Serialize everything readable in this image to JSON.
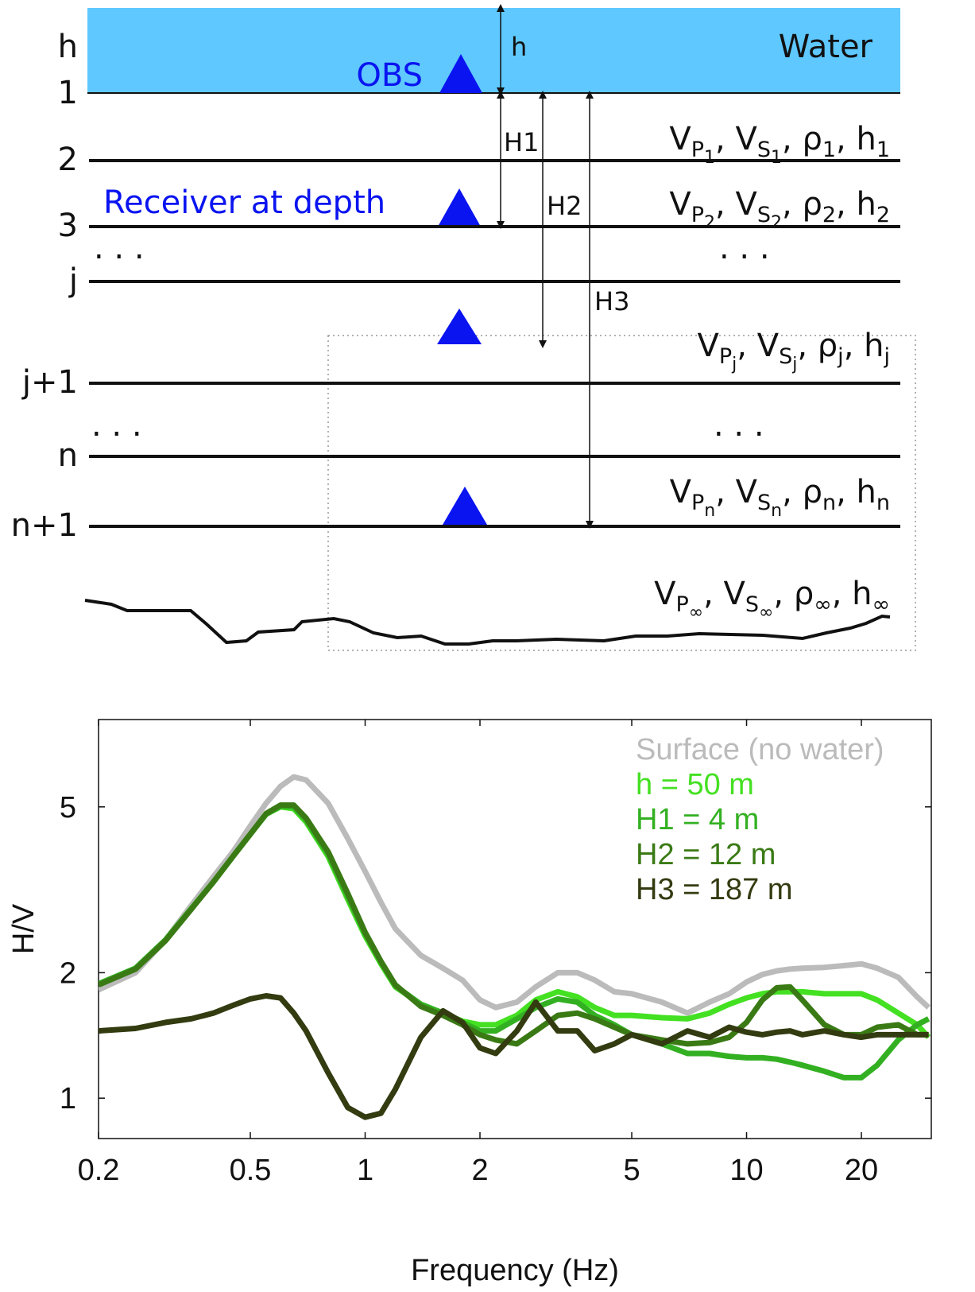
{
  "diagram": {
    "water_label": "Water",
    "obs_label": "OBS",
    "receiver_label": "Receiver at depth",
    "interface_labels": [
      "h",
      "1",
      "2",
      "3",
      "j",
      "j+1",
      "n",
      "n+1"
    ],
    "ellipsis": ". . .",
    "distance_labels": [
      "h",
      "H1",
      "H2",
      "H3"
    ],
    "separator": ", ",
    "layers": [
      [
        {
          "base": "V",
          "sub": "P",
          "subsub": "1"
        },
        {
          "base": "V",
          "sub": "S",
          "subsub": "1"
        },
        {
          "base": "ρ",
          "sub": "1"
        },
        {
          "base": "h",
          "sub": "1"
        }
      ],
      [
        {
          "base": "V",
          "sub": "P",
          "subsub": "2"
        },
        {
          "base": "V",
          "sub": "S",
          "subsub": "2"
        },
        {
          "base": "ρ",
          "sub": "2"
        },
        {
          "base": "h",
          "sub": "2"
        }
      ],
      [
        {
          "base": "V",
          "sub": "P",
          "subsub": "j"
        },
        {
          "base": "V",
          "sub": "S",
          "subsub": "j"
        },
        {
          "base": "ρ",
          "sub": "j"
        },
        {
          "base": "h",
          "sub": "j"
        }
      ],
      [
        {
          "base": "V",
          "sub": "P",
          "subsub": "n"
        },
        {
          "base": "V",
          "sub": "S",
          "subsub": "n"
        },
        {
          "base": "ρ",
          "sub": "n"
        },
        {
          "base": "h",
          "sub": "n"
        }
      ],
      [
        {
          "base": "V",
          "sub": "P",
          "subsub": "∞"
        },
        {
          "base": "V",
          "sub": "S",
          "subsub": "∞"
        },
        {
          "base": "ρ",
          "sub": "∞"
        },
        {
          "base": "h",
          "sub": "∞"
        }
      ]
    ]
  },
  "chart_data": {
    "type": "line",
    "xlabel": "Frequency (Hz)",
    "ylabel": "H/V",
    "xscale": "log",
    "yscale": "log",
    "xlim": [
      0.2,
      30.5
    ],
    "ylim": [
      0.8,
      8.1
    ],
    "xticks": [
      0.2,
      0.5,
      1,
      2,
      5,
      10,
      20
    ],
    "yticks": [
      1,
      2,
      5
    ],
    "x": [
      0.2,
      0.25,
      0.3,
      0.35,
      0.4,
      0.45,
      0.5,
      0.55,
      0.6,
      0.65,
      0.7,
      0.8,
      0.9,
      1,
      1.1,
      1.2,
      1.4,
      1.6,
      1.8,
      2,
      2.2,
      2.5,
      2.8,
      3.2,
      3.6,
      4,
      4.5,
      5,
      6,
      7,
      8,
      9,
      10,
      11,
      12,
      13,
      14,
      16,
      18,
      20,
      22,
      25,
      28,
      30
    ],
    "series": [
      {
        "name": "Surface (no water)",
        "color": "#bbbbbb",
        "values": [
          1.82,
          2.0,
          2.4,
          2.9,
          3.4,
          3.9,
          4.5,
          5.1,
          5.6,
          5.9,
          5.8,
          5.1,
          4.2,
          3.5,
          2.95,
          2.55,
          2.2,
          2.05,
          1.92,
          1.72,
          1.65,
          1.7,
          1.85,
          2.0,
          2.0,
          1.92,
          1.8,
          1.78,
          1.7,
          1.6,
          1.7,
          1.78,
          1.9,
          1.98,
          2.02,
          2.04,
          2.05,
          2.06,
          2.08,
          2.1,
          2.05,
          1.95,
          1.75,
          1.65
        ]
      },
      {
        "name": "h = 50 m",
        "color": "#44e022",
        "values": [
          1.88,
          2.05,
          2.4,
          2.85,
          3.3,
          3.8,
          4.3,
          4.8,
          5.0,
          4.95,
          4.6,
          3.8,
          3.0,
          2.45,
          2.1,
          1.85,
          1.68,
          1.6,
          1.53,
          1.5,
          1.5,
          1.58,
          1.72,
          1.8,
          1.75,
          1.65,
          1.58,
          1.58,
          1.56,
          1.55,
          1.6,
          1.68,
          1.74,
          1.78,
          1.8,
          1.8,
          1.8,
          1.78,
          1.78,
          1.78,
          1.72,
          1.6,
          1.5,
          1.4
        ]
      },
      {
        "name": "H1 = 4 m",
        "color": "#33b022",
        "values": [
          1.88,
          2.05,
          2.4,
          2.85,
          3.3,
          3.8,
          4.3,
          4.8,
          5.02,
          5.0,
          4.65,
          3.85,
          3.05,
          2.48,
          2.12,
          1.86,
          1.68,
          1.6,
          1.52,
          1.45,
          1.45,
          1.55,
          1.65,
          1.73,
          1.7,
          1.58,
          1.5,
          1.42,
          1.35,
          1.28,
          1.28,
          1.26,
          1.25,
          1.25,
          1.24,
          1.22,
          1.2,
          1.16,
          1.12,
          1.12,
          1.2,
          1.38,
          1.5,
          1.55
        ]
      },
      {
        "name": "H2 = 12 m",
        "color": "#3a7a15",
        "values": [
          1.87,
          2.04,
          2.39,
          2.84,
          3.3,
          3.8,
          4.3,
          4.82,
          5.05,
          5.05,
          4.7,
          3.9,
          3.1,
          2.5,
          2.13,
          1.87,
          1.66,
          1.58,
          1.5,
          1.42,
          1.38,
          1.35,
          1.45,
          1.58,
          1.6,
          1.55,
          1.48,
          1.42,
          1.38,
          1.35,
          1.36,
          1.4,
          1.52,
          1.72,
          1.84,
          1.85,
          1.72,
          1.5,
          1.42,
          1.42,
          1.48,
          1.5,
          1.42,
          1.42
        ]
      },
      {
        "name": "H3 = 187 m",
        "color": "#333b10",
        "values": [
          1.45,
          1.47,
          1.52,
          1.55,
          1.6,
          1.67,
          1.73,
          1.76,
          1.74,
          1.6,
          1.45,
          1.15,
          0.95,
          0.9,
          0.92,
          1.05,
          1.4,
          1.62,
          1.52,
          1.32,
          1.28,
          1.45,
          1.7,
          1.45,
          1.45,
          1.3,
          1.35,
          1.42,
          1.35,
          1.45,
          1.4,
          1.48,
          1.44,
          1.42,
          1.44,
          1.45,
          1.42,
          1.45,
          1.42,
          1.4,
          1.42,
          1.42,
          1.42,
          1.42
        ]
      }
    ]
  }
}
